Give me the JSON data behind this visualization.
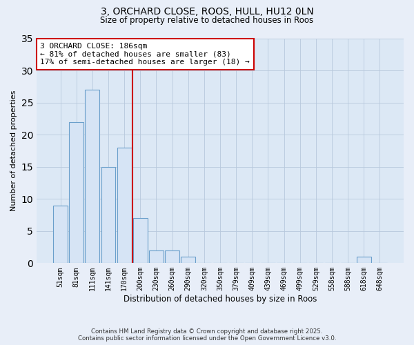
{
  "title1": "3, ORCHARD CLOSE, ROOS, HULL, HU12 0LN",
  "title2": "Size of property relative to detached houses in Roos",
  "bar_labels": [
    "51sqm",
    "81sqm",
    "111sqm",
    "141sqm",
    "170sqm",
    "200sqm",
    "230sqm",
    "260sqm",
    "290sqm",
    "320sqm",
    "350sqm",
    "379sqm",
    "409sqm",
    "439sqm",
    "469sqm",
    "499sqm",
    "529sqm",
    "558sqm",
    "588sqm",
    "618sqm",
    "648sqm"
  ],
  "bar_values": [
    9,
    22,
    27,
    15,
    18,
    7,
    2,
    2,
    1,
    0,
    0,
    0,
    0,
    0,
    0,
    0,
    0,
    0,
    0,
    1,
    0
  ],
  "bar_color": "#d6e4f5",
  "bar_edge_color": "#6a9fcb",
  "vline_color": "#cc0000",
  "annotation_title": "3 ORCHARD CLOSE: 186sqm",
  "annotation_line1": "← 81% of detached houses are smaller (83)",
  "annotation_line2": "17% of semi-detached houses are larger (18) →",
  "annotation_box_edge": "#cc0000",
  "xlabel": "Distribution of detached houses by size in Roos",
  "ylabel": "Number of detached properties",
  "ylim": [
    0,
    35
  ],
  "yticks": [
    0,
    5,
    10,
    15,
    20,
    25,
    30,
    35
  ],
  "footer1": "Contains HM Land Registry data © Crown copyright and database right 2025.",
  "footer2": "Contains public sector information licensed under the Open Government Licence v3.0.",
  "bg_color": "#e8eef8",
  "plot_bg_color": "#dce8f5"
}
